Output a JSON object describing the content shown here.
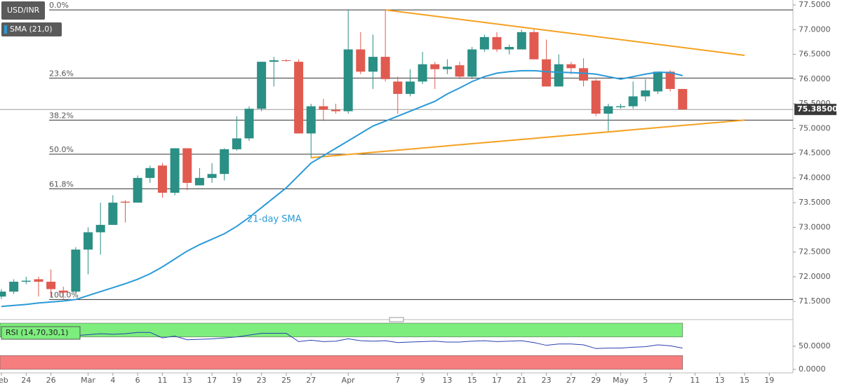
{
  "chart_data": [
    {
      "type": "candlestick",
      "title": "USD/INR",
      "categories": [
        "Feb",
        null,
        "24",
        null,
        "26",
        null,
        null,
        "Mar",
        null,
        "4",
        null,
        "6",
        null,
        "11",
        null,
        "13",
        null,
        "17",
        null,
        "19",
        null,
        "23",
        null,
        "25",
        null,
        "27",
        null,
        null,
        "Apr",
        null,
        null,
        null,
        "7",
        null,
        "9",
        null,
        "13",
        null,
        "15",
        null,
        "17",
        null,
        "21",
        null,
        "23",
        null,
        "27",
        null,
        "29",
        null,
        "May",
        null,
        "5",
        null,
        "7",
        null,
        "11",
        null,
        "13",
        null,
        "15",
        null,
        "19"
      ],
      "open": [
        71.6,
        71.7,
        71.9,
        71.95,
        71.9,
        71.72,
        71.7,
        72.55,
        72.9,
        73.05,
        73.52,
        73.5,
        74.0,
        74.25,
        73.7,
        74.6,
        73.85,
        74.0,
        74.08,
        74.58,
        74.8,
        75.4,
        76.35,
        76.38,
        76.35,
        74.9,
        75.45,
        75.38,
        75.35,
        76.6,
        76.15,
        76.45,
        75.95,
        75.7,
        75.95,
        76.3,
        76.2,
        76.28,
        76.05,
        76.6,
        76.85,
        76.6,
        76.6,
        76.95,
        76.4,
        75.85,
        76.3,
        76.22,
        75.97,
        75.3,
        75.43,
        75.45,
        75.65,
        75.75,
        76.15,
        75.8,
        null,
        null,
        null,
        null,
        null,
        null,
        null
      ],
      "high": [
        71.75,
        71.95,
        72.0,
        72.0,
        72.15,
        71.8,
        72.6,
        73.0,
        73.5,
        73.65,
        73.55,
        74.05,
        74.25,
        74.3,
        74.6,
        74.6,
        74.2,
        74.3,
        74.6,
        75.25,
        75.45,
        76.35,
        76.45,
        76.4,
        76.4,
        75.5,
        75.6,
        75.5,
        77.4,
        76.95,
        76.9,
        77.4,
        76.05,
        76.2,
        76.55,
        76.35,
        76.4,
        76.35,
        76.65,
        76.9,
        76.95,
        76.7,
        77.0,
        77.0,
        76.8,
        76.5,
        76.35,
        76.42,
        76.0,
        75.5,
        75.5,
        75.95,
        76.0,
        76.15,
        76.18,
        75.8,
        null,
        null,
        null,
        null,
        null,
        null,
        null
      ],
      "low": [
        71.55,
        71.65,
        71.85,
        71.6,
        71.6,
        71.55,
        71.65,
        72.05,
        72.45,
        73.05,
        73.1,
        73.5,
        73.9,
        73.6,
        73.65,
        73.75,
        73.85,
        73.9,
        73.95,
        74.55,
        74.75,
        75.35,
        75.85,
        76.35,
        74.9,
        74.4,
        75.15,
        75.3,
        75.3,
        76.1,
        75.8,
        75.95,
        75.3,
        75.65,
        75.9,
        75.8,
        76.1,
        76.0,
        76.0,
        76.55,
        76.55,
        76.5,
        76.6,
        76.4,
        75.85,
        75.85,
        76.1,
        75.85,
        75.25,
        74.95,
        75.4,
        75.4,
        75.55,
        75.7,
        75.75,
        75.38,
        null,
        null,
        null,
        null,
        null,
        null,
        null
      ],
      "close": [
        71.7,
        71.9,
        71.92,
        71.9,
        71.75,
        71.68,
        72.55,
        72.9,
        73.05,
        73.5,
        73.5,
        74.0,
        74.2,
        73.7,
        74.6,
        73.9,
        74.0,
        74.08,
        74.58,
        74.8,
        75.4,
        76.35,
        76.38,
        76.37,
        74.9,
        75.45,
        75.38,
        75.35,
        76.6,
        76.15,
        76.45,
        76.0,
        75.7,
        75.95,
        76.3,
        76.2,
        76.25,
        76.05,
        76.6,
        76.85,
        76.6,
        76.65,
        76.95,
        76.4,
        75.85,
        76.3,
        76.22,
        75.97,
        75.3,
        75.45,
        75.45,
        75.65,
        75.77,
        76.15,
        75.8,
        75.385,
        null,
        null,
        null,
        null,
        null,
        null,
        null
      ],
      "up_color": "#2a8f84",
      "down_color": "#e05a50",
      "series": [
        {
          "name": "SMA (21,0)",
          "color": "#2a9ad8",
          "values": [
            71.4,
            71.42,
            71.44,
            71.47,
            71.49,
            71.51,
            71.54,
            71.62,
            71.7,
            71.78,
            71.86,
            71.95,
            72.06,
            72.2,
            72.36,
            72.52,
            72.65,
            72.76,
            72.87,
            73.02,
            73.2,
            73.4,
            73.6,
            73.8,
            74.05,
            74.3,
            74.45,
            74.6,
            74.75,
            74.9,
            75.05,
            75.15,
            75.25,
            75.35,
            75.45,
            75.55,
            75.7,
            75.82,
            75.95,
            76.05,
            76.12,
            76.15,
            76.17,
            76.17,
            76.15,
            76.14,
            76.13,
            76.12,
            76.1,
            76.05,
            76.0,
            76.05,
            76.1,
            76.14,
            76.13,
            76.07,
            null,
            null,
            null,
            null,
            null,
            null,
            null
          ]
        }
      ],
      "annotation": "21-day SMA",
      "fib_levels": [
        {
          "label": "0.0%",
          "value": 77.4
        },
        {
          "label": "23.6%",
          "value": 76.02
        },
        {
          "label": "38.2%",
          "value": 75.17
        },
        {
          "label": "50.0%",
          "value": 74.48
        },
        {
          "label": "61.8%",
          "value": 73.78
        },
        {
          "label": "100.0%",
          "value": 71.54
        }
      ],
      "trendlines": [
        {
          "color": "#f5a020",
          "start": 31,
          "end": 60,
          "values": [
            77.4,
            76.48
          ]
        },
        {
          "color": "#f5a020",
          "start": 25,
          "end": 60,
          "values": [
            74.41,
            75.17
          ]
        }
      ],
      "last_price": {
        "value": 75.385,
        "label": "75.38500"
      },
      "ylim": [
        71.19,
        77.6
      ],
      "yticks": [
        {
          "value": 77.5,
          "label": "77.5000"
        },
        {
          "value": 77.0,
          "label": "77.0000"
        },
        {
          "value": 76.5,
          "label": "76.5000"
        },
        {
          "value": 76.0,
          "label": "76.0000"
        },
        {
          "value": 75.5,
          "label": "75.5000"
        },
        {
          "value": 75.0,
          "label": "75.0000"
        },
        {
          "value": 74.5,
          "label": "74.5000"
        },
        {
          "value": 74.0,
          "label": "74.0000"
        },
        {
          "value": 73.5,
          "label": "73.5000"
        },
        {
          "value": 73.0,
          "label": "73.0000"
        },
        {
          "value": 72.5,
          "label": "72.5000"
        },
        {
          "value": 72.0,
          "label": "72.0000"
        },
        {
          "value": 71.5,
          "label": "71.5000"
        }
      ]
    },
    {
      "type": "line",
      "title": "RSI (14,70,30,1)",
      "color": "#2a3fb0",
      "values": [
        72,
        71,
        72,
        71,
        70,
        70,
        73,
        75,
        77,
        76,
        77,
        80,
        80,
        68,
        72,
        64,
        65,
        66,
        68,
        70,
        74,
        78,
        78,
        78,
        60,
        63,
        60,
        61,
        66,
        62,
        61,
        62,
        58,
        59,
        60,
        61,
        59,
        59,
        61,
        62,
        60,
        61,
        62,
        58,
        52,
        55,
        55,
        53,
        45,
        46,
        46,
        48,
        49,
        53,
        51,
        46,
        null,
        null,
        null,
        null,
        null,
        null,
        null
      ],
      "zones": [
        {
          "from": 70,
          "to": 100,
          "color": "#7ded7d"
        },
        {
          "from": 0,
          "to": 30,
          "color": "#f67e7e"
        }
      ],
      "ylim": [
        0,
        100
      ],
      "yticks": [
        {
          "value": 50,
          "label": "50.0000"
        },
        {
          "value": 0,
          "label": "0.0000"
        }
      ]
    }
  ]
}
